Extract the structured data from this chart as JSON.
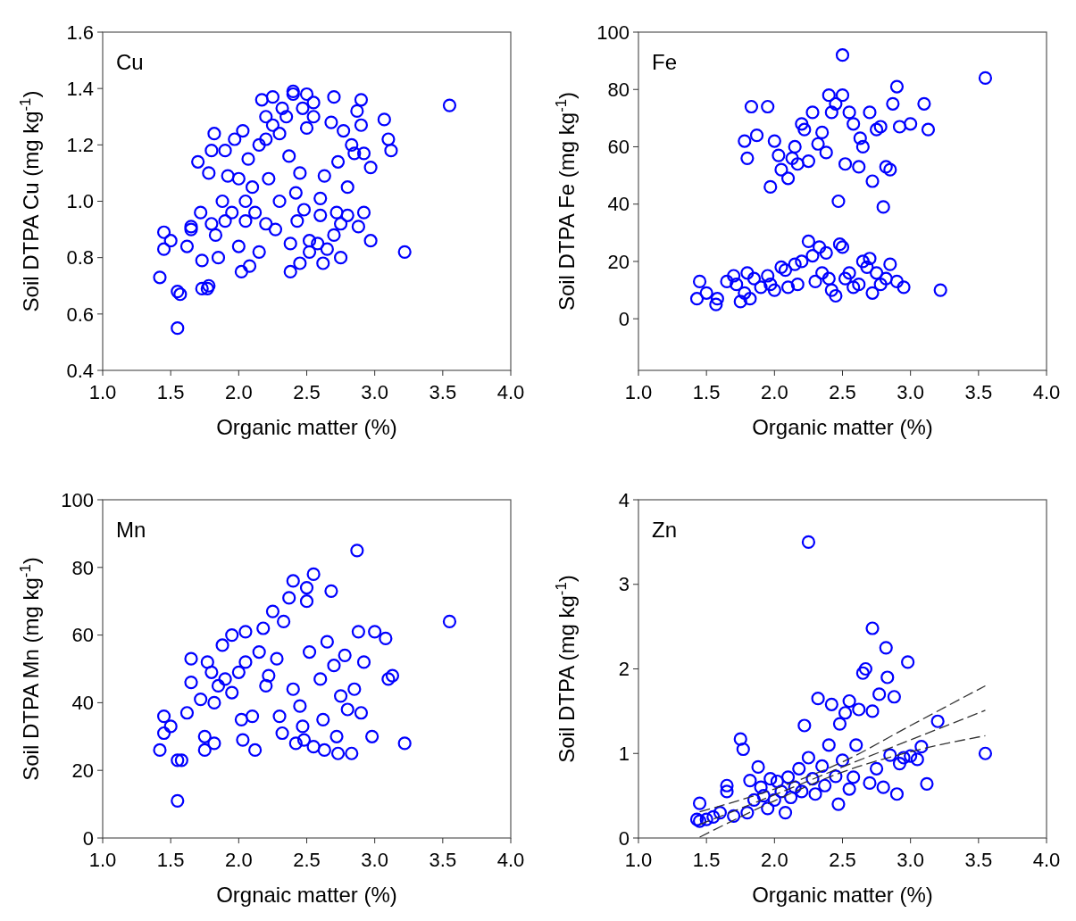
{
  "chart_data": [
    {
      "type": "scatter",
      "annotations": [
        "Cu"
      ],
      "xlabel": "Organic matter (%)",
      "ylabel": "Soil DTPA Cu (mg kg$^{-1}$)",
      "xlim": [
        1,
        4
      ],
      "ylim": [
        0.4,
        1.6
      ],
      "xticks": [
        {
          "value": 1,
          "label": "1.0"
        },
        1.5,
        {
          "value": 2,
          "label": "2.0"
        },
        2.5,
        {
          "value": 3,
          "label": "3.0"
        },
        3.5,
        {
          "value": 4,
          "label": "4.0"
        }
      ],
      "yticks": [
        0.4,
        0.6,
        0.8,
        {
          "value": 1,
          "label": "1.0"
        },
        1.2,
        1.4,
        1.6
      ],
      "marker": "circle",
      "grid": false,
      "series": [
        {
          "color": "#0000ff",
          "x": [
            1.42,
            1.45,
            1.45,
            1.5,
            1.55,
            1.55,
            1.57,
            1.62,
            1.65,
            1.65,
            1.7,
            1.72,
            1.73,
            1.73,
            1.77,
            1.78,
            1.78,
            1.8,
            1.8,
            1.82,
            1.83,
            1.85,
            1.88,
            1.9,
            1.9,
            1.92,
            1.95,
            1.97,
            2.0,
            2.0,
            2.02,
            2.03,
            2.05,
            2.05,
            2.07,
            2.08,
            2.1,
            2.12,
            2.15,
            2.15,
            2.17,
            2.2,
            2.2,
            2.2,
            2.22,
            2.25,
            2.25,
            2.27,
            2.3,
            2.3,
            2.32,
            2.35,
            2.37,
            2.38,
            2.38,
            2.4,
            2.4,
            2.42,
            2.43,
            2.45,
            2.45,
            2.47,
            2.48,
            2.5,
            2.5,
            2.52,
            2.52,
            2.55,
            2.55,
            2.58,
            2.6,
            2.6,
            2.62,
            2.63,
            2.65,
            2.68,
            2.7,
            2.7,
            2.72,
            2.73,
            2.75,
            2.75,
            2.77,
            2.8,
            2.8,
            2.83,
            2.85,
            2.87,
            2.88,
            2.9,
            2.9,
            2.92,
            2.92,
            2.97,
            2.97,
            3.07,
            3.1,
            3.12,
            3.22,
            3.55
          ],
          "values": [
            0.73,
            0.89,
            0.83,
            0.86,
            0.55,
            0.68,
            0.67,
            0.84,
            0.91,
            0.9,
            1.14,
            0.96,
            0.79,
            0.69,
            0.69,
            0.7,
            1.1,
            1.18,
            0.92,
            1.24,
            0.88,
            0.8,
            1.0,
            0.93,
            1.18,
            1.09,
            0.96,
            1.22,
            1.08,
            0.84,
            0.75,
            1.25,
            1.0,
            0.93,
            1.15,
            0.77,
            1.05,
            0.96,
            1.2,
            0.82,
            1.36,
            1.22,
            1.3,
            0.92,
            1.08,
            1.37,
            1.27,
            0.9,
            1.24,
            1.0,
            1.33,
            1.3,
            1.16,
            0.85,
            0.75,
            1.39,
            1.38,
            1.03,
            0.93,
            1.1,
            0.78,
            1.33,
            0.97,
            1.38,
            1.26,
            0.86,
            0.82,
            1.35,
            1.3,
            0.85,
            1.01,
            0.95,
            0.78,
            1.09,
            0.83,
            1.28,
            1.37,
            0.88,
            0.96,
            1.14,
            0.8,
            0.92,
            1.25,
            1.05,
            0.95,
            1.2,
            1.17,
            1.32,
            0.91,
            1.36,
            1.27,
            1.17,
            0.96,
            1.12,
            0.86,
            1.29,
            1.22,
            1.18,
            0.82,
            1.34
          ]
        }
      ]
    },
    {
      "type": "scatter",
      "annotations": [
        "Fe"
      ],
      "xlabel": "Organic matter (%)",
      "ylabel": "Soil DTPA Fe (mg kg$^{-1}$)",
      "xlim": [
        1,
        4
      ],
      "ylim": [
        -18,
        100
      ],
      "xticks": [
        {
          "value": 1,
          "label": "1.0"
        },
        1.5,
        {
          "value": 2,
          "label": "2.0"
        },
        2.5,
        {
          "value": 3,
          "label": "3.0"
        },
        3.5,
        {
          "value": 4,
          "label": "4.0"
        }
      ],
      "yticks": [
        0,
        20,
        40,
        60,
        80,
        100
      ],
      "marker": "circle",
      "grid": false,
      "series": [
        {
          "color": "#0000ff",
          "x": [
            1.43,
            1.45,
            1.5,
            1.57,
            1.58,
            1.65,
            1.7,
            1.72,
            1.75,
            1.78,
            1.8,
            1.82,
            1.85,
            1.9,
            1.95,
            1.97,
            2.0,
            2.05,
            2.08,
            2.1,
            2.15,
            2.17,
            2.2,
            2.25,
            2.28,
            2.3,
            2.33,
            2.35,
            2.38,
            2.4,
            2.42,
            2.45,
            2.48,
            2.5,
            2.52,
            2.55,
            2.58,
            2.62,
            2.65,
            2.68,
            2.7,
            2.72,
            2.75,
            2.78,
            2.82,
            2.85,
            2.9,
            2.95,
            3.22,
            1.78,
            1.8,
            1.83,
            1.87,
            1.95,
            1.97,
            2.0,
            2.03,
            2.05,
            2.1,
            2.13,
            2.15,
            2.17,
            2.2,
            2.22,
            2.25,
            2.28,
            2.32,
            2.35,
            2.38,
            2.4,
            2.42,
            2.45,
            2.47,
            2.5,
            2.5,
            2.52,
            2.55,
            2.58,
            2.62,
            2.63,
            2.65,
            2.7,
            2.72,
            2.75,
            2.78,
            2.8,
            2.82,
            2.85,
            2.87,
            2.9,
            2.92,
            3.0,
            3.1,
            3.13,
            3.55
          ],
          "values": [
            7,
            13,
            9,
            5,
            7,
            13,
            15,
            12,
            6,
            9,
            16,
            7,
            14,
            11,
            15,
            12,
            10,
            18,
            17,
            11,
            19,
            12,
            20,
            27,
            22,
            13,
            25,
            16,
            23,
            14,
            10,
            8,
            26,
            25,
            14,
            16,
            11,
            12,
            20,
            18,
            21,
            9,
            16,
            12,
            14,
            19,
            13,
            11,
            10,
            62,
            56,
            74,
            64,
            74,
            46,
            62,
            57,
            52,
            49,
            56,
            60,
            54,
            68,
            66,
            55,
            72,
            61,
            65,
            58,
            78,
            72,
            75,
            41,
            92,
            78,
            54,
            72,
            68,
            53,
            63,
            60,
            72,
            48,
            66,
            67,
            39,
            53,
            52,
            75,
            81,
            67,
            68,
            75,
            66,
            84
          ]
        }
      ]
    },
    {
      "type": "scatter",
      "annotations": [
        "Mn"
      ],
      "xlabel": "Orgnaic matter (%)",
      "ylabel": "Soil DTPA Mn (mg kg$^{-1}$)",
      "xlim": [
        1,
        4
      ],
      "ylim": [
        0,
        100
      ],
      "xticks": [
        {
          "value": 1,
          "label": "1.0"
        },
        1.5,
        {
          "value": 2,
          "label": "2.0"
        },
        2.5,
        {
          "value": 3,
          "label": "3.0"
        },
        3.5,
        {
          "value": 4,
          "label": "4.0"
        }
      ],
      "yticks": [
        0,
        20,
        40,
        60,
        80,
        100
      ],
      "marker": "circle",
      "grid": false,
      "series": [
        {
          "color": "#0000ff",
          "x": [
            1.42,
            1.45,
            1.45,
            1.5,
            1.55,
            1.55,
            1.58,
            1.62,
            1.65,
            1.65,
            1.72,
            1.75,
            1.75,
            1.77,
            1.8,
            1.82,
            1.82,
            1.85,
            1.88,
            1.9,
            1.95,
            1.95,
            2.0,
            2.02,
            2.03,
            2.05,
            2.05,
            2.1,
            2.12,
            2.15,
            2.18,
            2.2,
            2.22,
            2.25,
            2.28,
            2.3,
            2.32,
            2.33,
            2.37,
            2.4,
            2.4,
            2.42,
            2.45,
            2.47,
            2.48,
            2.5,
            2.5,
            2.52,
            2.55,
            2.55,
            2.6,
            2.62,
            2.63,
            2.65,
            2.68,
            2.7,
            2.72,
            2.73,
            2.75,
            2.78,
            2.8,
            2.83,
            2.85,
            2.87,
            2.88,
            2.9,
            2.92,
            2.98,
            3.0,
            3.08,
            3.1,
            3.13,
            3.22,
            3.55
          ],
          "values": [
            26,
            36,
            31,
            33,
            11,
            23,
            23,
            37,
            46,
            53,
            41,
            26,
            30,
            52,
            49,
            40,
            28,
            45,
            57,
            47,
            60,
            43,
            49,
            35,
            29,
            61,
            52,
            36,
            26,
            55,
            62,
            45,
            48,
            67,
            53,
            36,
            31,
            64,
            71,
            76,
            44,
            28,
            39,
            33,
            29,
            74,
            70,
            55,
            27,
            78,
            47,
            35,
            26,
            58,
            73,
            51,
            30,
            25,
            42,
            54,
            38,
            25,
            44,
            85,
            61,
            37,
            52,
            30,
            61,
            59,
            47,
            48,
            28,
            64
          ]
        }
      ]
    },
    {
      "type": "scatter",
      "annotations": [
        "Zn"
      ],
      "xlabel": "Organic matter (%)",
      "ylabel": "Soil DTPA (mg kg$^{-1}$)",
      "xlim": [
        1,
        4
      ],
      "ylim": [
        0,
        4
      ],
      "xticks": [
        {
          "value": 1,
          "label": "1.0"
        },
        1.5,
        {
          "value": 2,
          "label": "2.0"
        },
        2.5,
        {
          "value": 3,
          "label": "3.0"
        },
        3.5,
        {
          "value": 4,
          "label": "4.0"
        }
      ],
      "yticks": [
        0,
        1,
        2,
        3,
        4
      ],
      "marker": "circle",
      "grid": false,
      "series": [
        {
          "color": "#0000ff",
          "x": [
            1.43,
            1.45,
            1.45,
            1.5,
            1.55,
            1.6,
            1.65,
            1.65,
            1.7,
            1.75,
            1.77,
            1.8,
            1.82,
            1.85,
            1.88,
            1.9,
            1.92,
            1.95,
            1.97,
            2.0,
            2.02,
            2.05,
            2.08,
            2.1,
            2.12,
            2.15,
            2.18,
            2.2,
            2.22,
            2.25,
            2.25,
            2.28,
            2.3,
            2.32,
            2.35,
            2.37,
            2.4,
            2.42,
            2.45,
            2.47,
            2.48,
            2.5,
            2.52,
            2.55,
            2.55,
            2.58,
            2.6,
            2.62,
            2.65,
            2.67,
            2.7,
            2.72,
            2.72,
            2.75,
            2.77,
            2.8,
            2.82,
            2.83,
            2.85,
            2.88,
            2.9,
            2.92,
            2.95,
            2.98,
            3.0,
            3.05,
            3.08,
            3.12,
            3.2,
            3.55
          ],
          "values": [
            0.22,
            0.2,
            0.41,
            0.22,
            0.25,
            0.3,
            0.62,
            0.55,
            0.26,
            1.17,
            1.05,
            0.3,
            0.68,
            0.45,
            0.84,
            0.6,
            0.5,
            0.35,
            0.7,
            0.45,
            0.67,
            0.55,
            0.3,
            0.72,
            0.48,
            0.6,
            0.82,
            0.55,
            1.33,
            3.5,
            0.95,
            0.7,
            0.52,
            1.65,
            0.85,
            0.62,
            1.1,
            1.58,
            0.73,
            0.4,
            1.35,
            0.92,
            1.48,
            1.62,
            0.58,
            0.72,
            1.1,
            1.52,
            1.95,
            2.0,
            0.65,
            2.48,
            1.5,
            0.82,
            1.7,
            0.6,
            2.25,
            1.9,
            0.98,
            1.67,
            0.52,
            0.88,
            0.95,
            2.08,
            0.97,
            0.93,
            1.08,
            0.64,
            1.38,
            1.0
          ]
        },
        {
          "type": "line",
          "color": "#333333",
          "line_style": "dashed",
          "marker": "none",
          "x": [
            1.45,
            2.0,
            2.5,
            3.0,
            3.55
          ],
          "values": [
            0.31,
            0.58,
            0.9,
            1.33,
            1.8
          ]
        },
        {
          "type": "line",
          "color": "#333333",
          "line_style": "dashed",
          "marker": "none",
          "x": [
            1.45,
            2.0,
            2.5,
            3.0,
            3.55
          ],
          "values": [
            0.16,
            0.51,
            0.84,
            1.16,
            1.51
          ]
        },
        {
          "type": "line",
          "color": "#333333",
          "line_style": "dashed",
          "marker": "none",
          "x": [
            1.45,
            2.0,
            2.5,
            3.0,
            3.55
          ],
          "values": [
            0.01,
            0.44,
            0.78,
            1.02,
            1.21
          ]
        }
      ]
    }
  ]
}
